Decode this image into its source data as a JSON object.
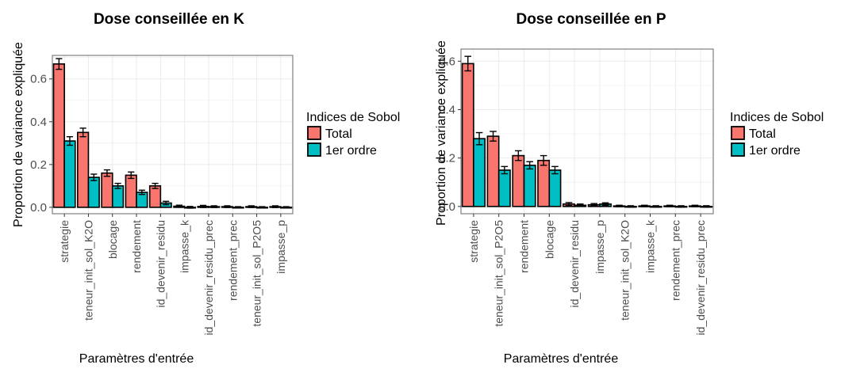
{
  "colors": {
    "total": "#F8766D",
    "first_order": "#00BFC4",
    "grid": "#EBEBEB",
    "border": "#7F7F7F"
  },
  "chart_data": [
    {
      "type": "bar",
      "title": "Dose conseillée en K",
      "xlabel": "Paramètres d'entrée",
      "ylabel": "Proportion de variance expliquée",
      "ylim": [
        -0.03,
        0.71
      ],
      "yticks": [
        "0.0",
        "0.2",
        "0.4",
        "0.6"
      ],
      "grid": true,
      "legend": {
        "title": "Indices de Sobol",
        "position": "right"
      },
      "categories": [
        "strategie",
        "teneur_init_sol_K2O",
        "blocage",
        "rendement",
        "id_devenir_residu",
        "impasse_k",
        "id_devenir_residu_prec",
        "rendement_prec",
        "teneur_init_sol_P2O5",
        "impasse_p"
      ],
      "series": [
        {
          "name": "Total",
          "values": [
            0.67,
            0.35,
            0.16,
            0.15,
            0.1,
            0.005,
            0.004,
            0.003,
            0.003,
            0.003
          ],
          "errors": [
            0.025,
            0.02,
            0.015,
            0.015,
            0.012,
            0.005,
            0.005,
            0.004,
            0.004,
            0.004
          ]
        },
        {
          "name": "1er ordre",
          "values": [
            0.31,
            0.14,
            0.1,
            0.07,
            0.02,
            0.0,
            0.003,
            0.0,
            0.0,
            0.0
          ],
          "errors": [
            0.02,
            0.015,
            0.012,
            0.01,
            0.008,
            0.004,
            0.004,
            0.003,
            0.003,
            0.003
          ]
        }
      ]
    },
    {
      "type": "bar",
      "title": "Dose conseillée en P",
      "xlabel": "Paramètres d'entrée",
      "ylabel": "Proportion de variance expliquée",
      "ylim": [
        -0.03,
        0.65
      ],
      "yticks": [
        "0.0",
        "0.2",
        "0.4",
        "0.6"
      ],
      "grid": true,
      "legend": {
        "title": "Indices de Sobol",
        "position": "right"
      },
      "categories": [
        "strategie",
        "teneur_init_sol_P2O5",
        "rendement",
        "blocage",
        "id_devenir_residu",
        "impasse_p",
        "teneur_init_sol_K2O",
        "impasse_k",
        "rendement_prec",
        "id_devenir_residu_prec"
      ],
      "series": [
        {
          "name": "Total",
          "values": [
            0.59,
            0.29,
            0.21,
            0.19,
            0.01,
            0.007,
            0.002,
            0.002,
            0.002,
            0.002
          ],
          "errors": [
            0.03,
            0.02,
            0.02,
            0.02,
            0.006,
            0.005,
            0.003,
            0.003,
            0.003,
            0.003
          ]
        },
        {
          "name": "1er ordre",
          "values": [
            0.28,
            0.15,
            0.17,
            0.15,
            0.005,
            0.01,
            0.0,
            0.0,
            0.0,
            0.0
          ],
          "errors": [
            0.025,
            0.015,
            0.015,
            0.015,
            0.005,
            0.005,
            0.003,
            0.003,
            0.003,
            0.003
          ]
        }
      ]
    }
  ]
}
